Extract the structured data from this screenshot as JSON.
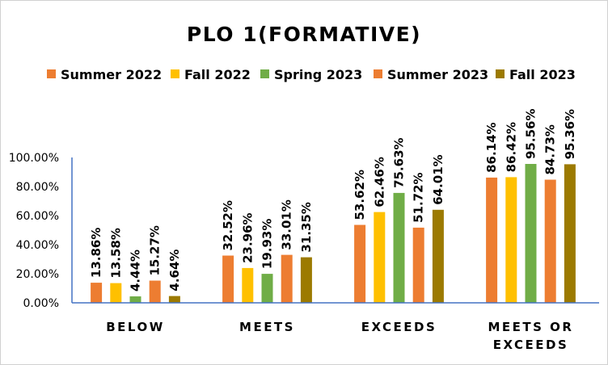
{
  "chart_data": {
    "type": "bar",
    "title": "PLO 1(FORMATIVE)",
    "categories": [
      "BELOW",
      "MEETS",
      "EXCEEDS",
      "MEETS OR EXCEEDS"
    ],
    "category_lines": [
      [
        "BELOW"
      ],
      [
        "MEETS"
      ],
      [
        "EXCEEDS"
      ],
      [
        "MEETS OR",
        "EXCEEDS"
      ]
    ],
    "series": [
      {
        "name": "Summer 2022",
        "color": "#ED7D31",
        "values": [
          13.86,
          32.52,
          53.62,
          86.14
        ],
        "labels": [
          "13.86%",
          "32.52%",
          "53.62%",
          "86.14%"
        ]
      },
      {
        "name": "Fall 2022",
        "color": "#FFC000",
        "values": [
          13.58,
          23.96,
          62.46,
          86.42
        ],
        "labels": [
          "13.58%",
          "23.96%",
          "62.46%",
          "86.42%"
        ]
      },
      {
        "name": "Spring 2023",
        "color": "#70AD47",
        "values": [
          4.44,
          19.93,
          75.63,
          95.56
        ],
        "labels": [
          "4.44%",
          "19.93%",
          "75.63%",
          "95.56%"
        ]
      },
      {
        "name": "Summer 2023",
        "color": "#ED7D31",
        "values": [
          15.27,
          33.01,
          51.72,
          84.73
        ],
        "labels": [
          "15.27%",
          "33.01%",
          "51.72%",
          "84.73%"
        ]
      },
      {
        "name": "Fall 2023",
        "color": "#9C7A00",
        "values": [
          4.64,
          31.35,
          64.01,
          95.36
        ],
        "labels": [
          "4.64%",
          "31.35%",
          "64.01%",
          "95.36%"
        ]
      }
    ],
    "ylim": [
      0,
      100
    ],
    "yticks": [
      0,
      20,
      40,
      60,
      80,
      100
    ],
    "ytick_labels": [
      "0.00%",
      "20.00%",
      "40.00%",
      "60.00%",
      "80.00%",
      "100.00%"
    ],
    "grid": false,
    "legend_position": "top"
  }
}
